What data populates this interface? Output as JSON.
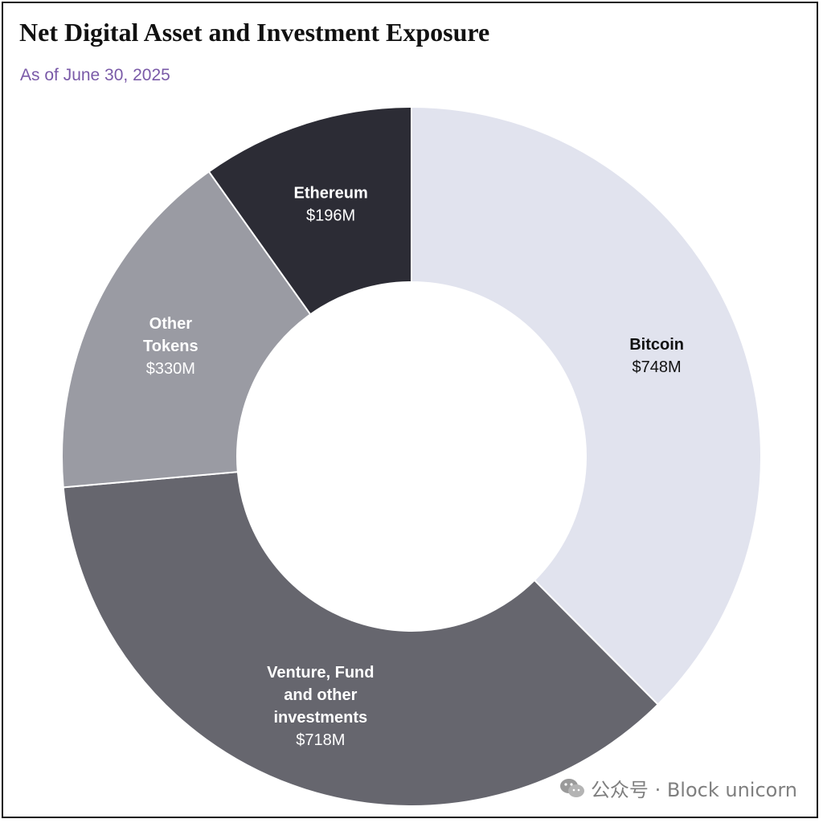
{
  "chart_data": {
    "type": "pie",
    "title": "Net Digital Asset and Investment Exposure",
    "subtitle": "As of June 30, 2025",
    "donut": true,
    "start_angle_deg": 0,
    "direction": "clockwise",
    "slices": [
      {
        "label_lines": [
          "Bitcoin"
        ],
        "value": 748,
        "value_label": "$748M",
        "color": "#e1e3ee",
        "text_color": "#111111"
      },
      {
        "label_lines": [
          "Venture, Fund",
          "and other",
          "investments"
        ],
        "value": 718,
        "value_label": "$718M",
        "color": "#66666e",
        "text_color": "#ffffff"
      },
      {
        "label_lines": [
          "Other",
          "Tokens"
        ],
        "value": 330,
        "value_label": "$330M",
        "color": "#9a9ba3",
        "text_color": "#ffffff"
      },
      {
        "label_lines": [
          "Ethereum"
        ],
        "value": 196,
        "value_label": "$196M",
        "color": "#2c2c35",
        "text_color": "#ffffff"
      }
    ]
  },
  "watermark": {
    "text": "公众号 · Block unicorn",
    "icon": "wechat-icon"
  }
}
